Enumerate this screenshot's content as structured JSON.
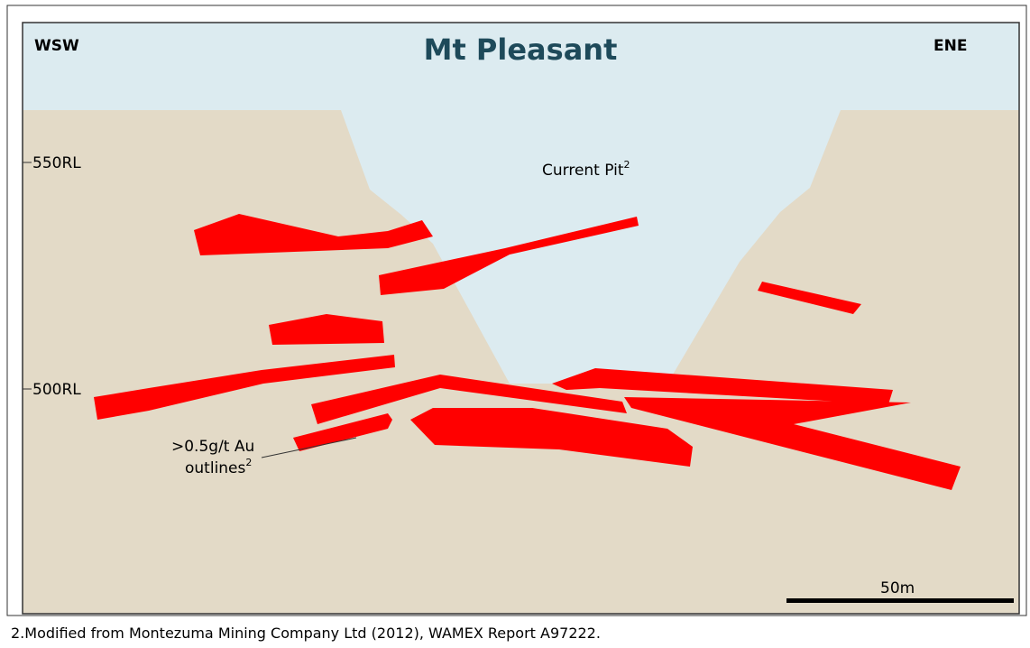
{
  "header": {
    "title": "Mt Pleasant",
    "left_direction": "WSW",
    "right_direction": "ENE"
  },
  "elevation_labels": [
    "550RL",
    "500RL"
  ],
  "annotations": {
    "pit": {
      "text": "Current Pit",
      "superscript": "2"
    },
    "outlines": {
      "lines": [
        ">0.5g/t Au",
        "outlines"
      ],
      "superscript": "2"
    }
  },
  "scale_bar": "50m",
  "footnote": "2.Modified from Montezuma Mining Company Ltd (2012), WAMEX Report A97222."
}
